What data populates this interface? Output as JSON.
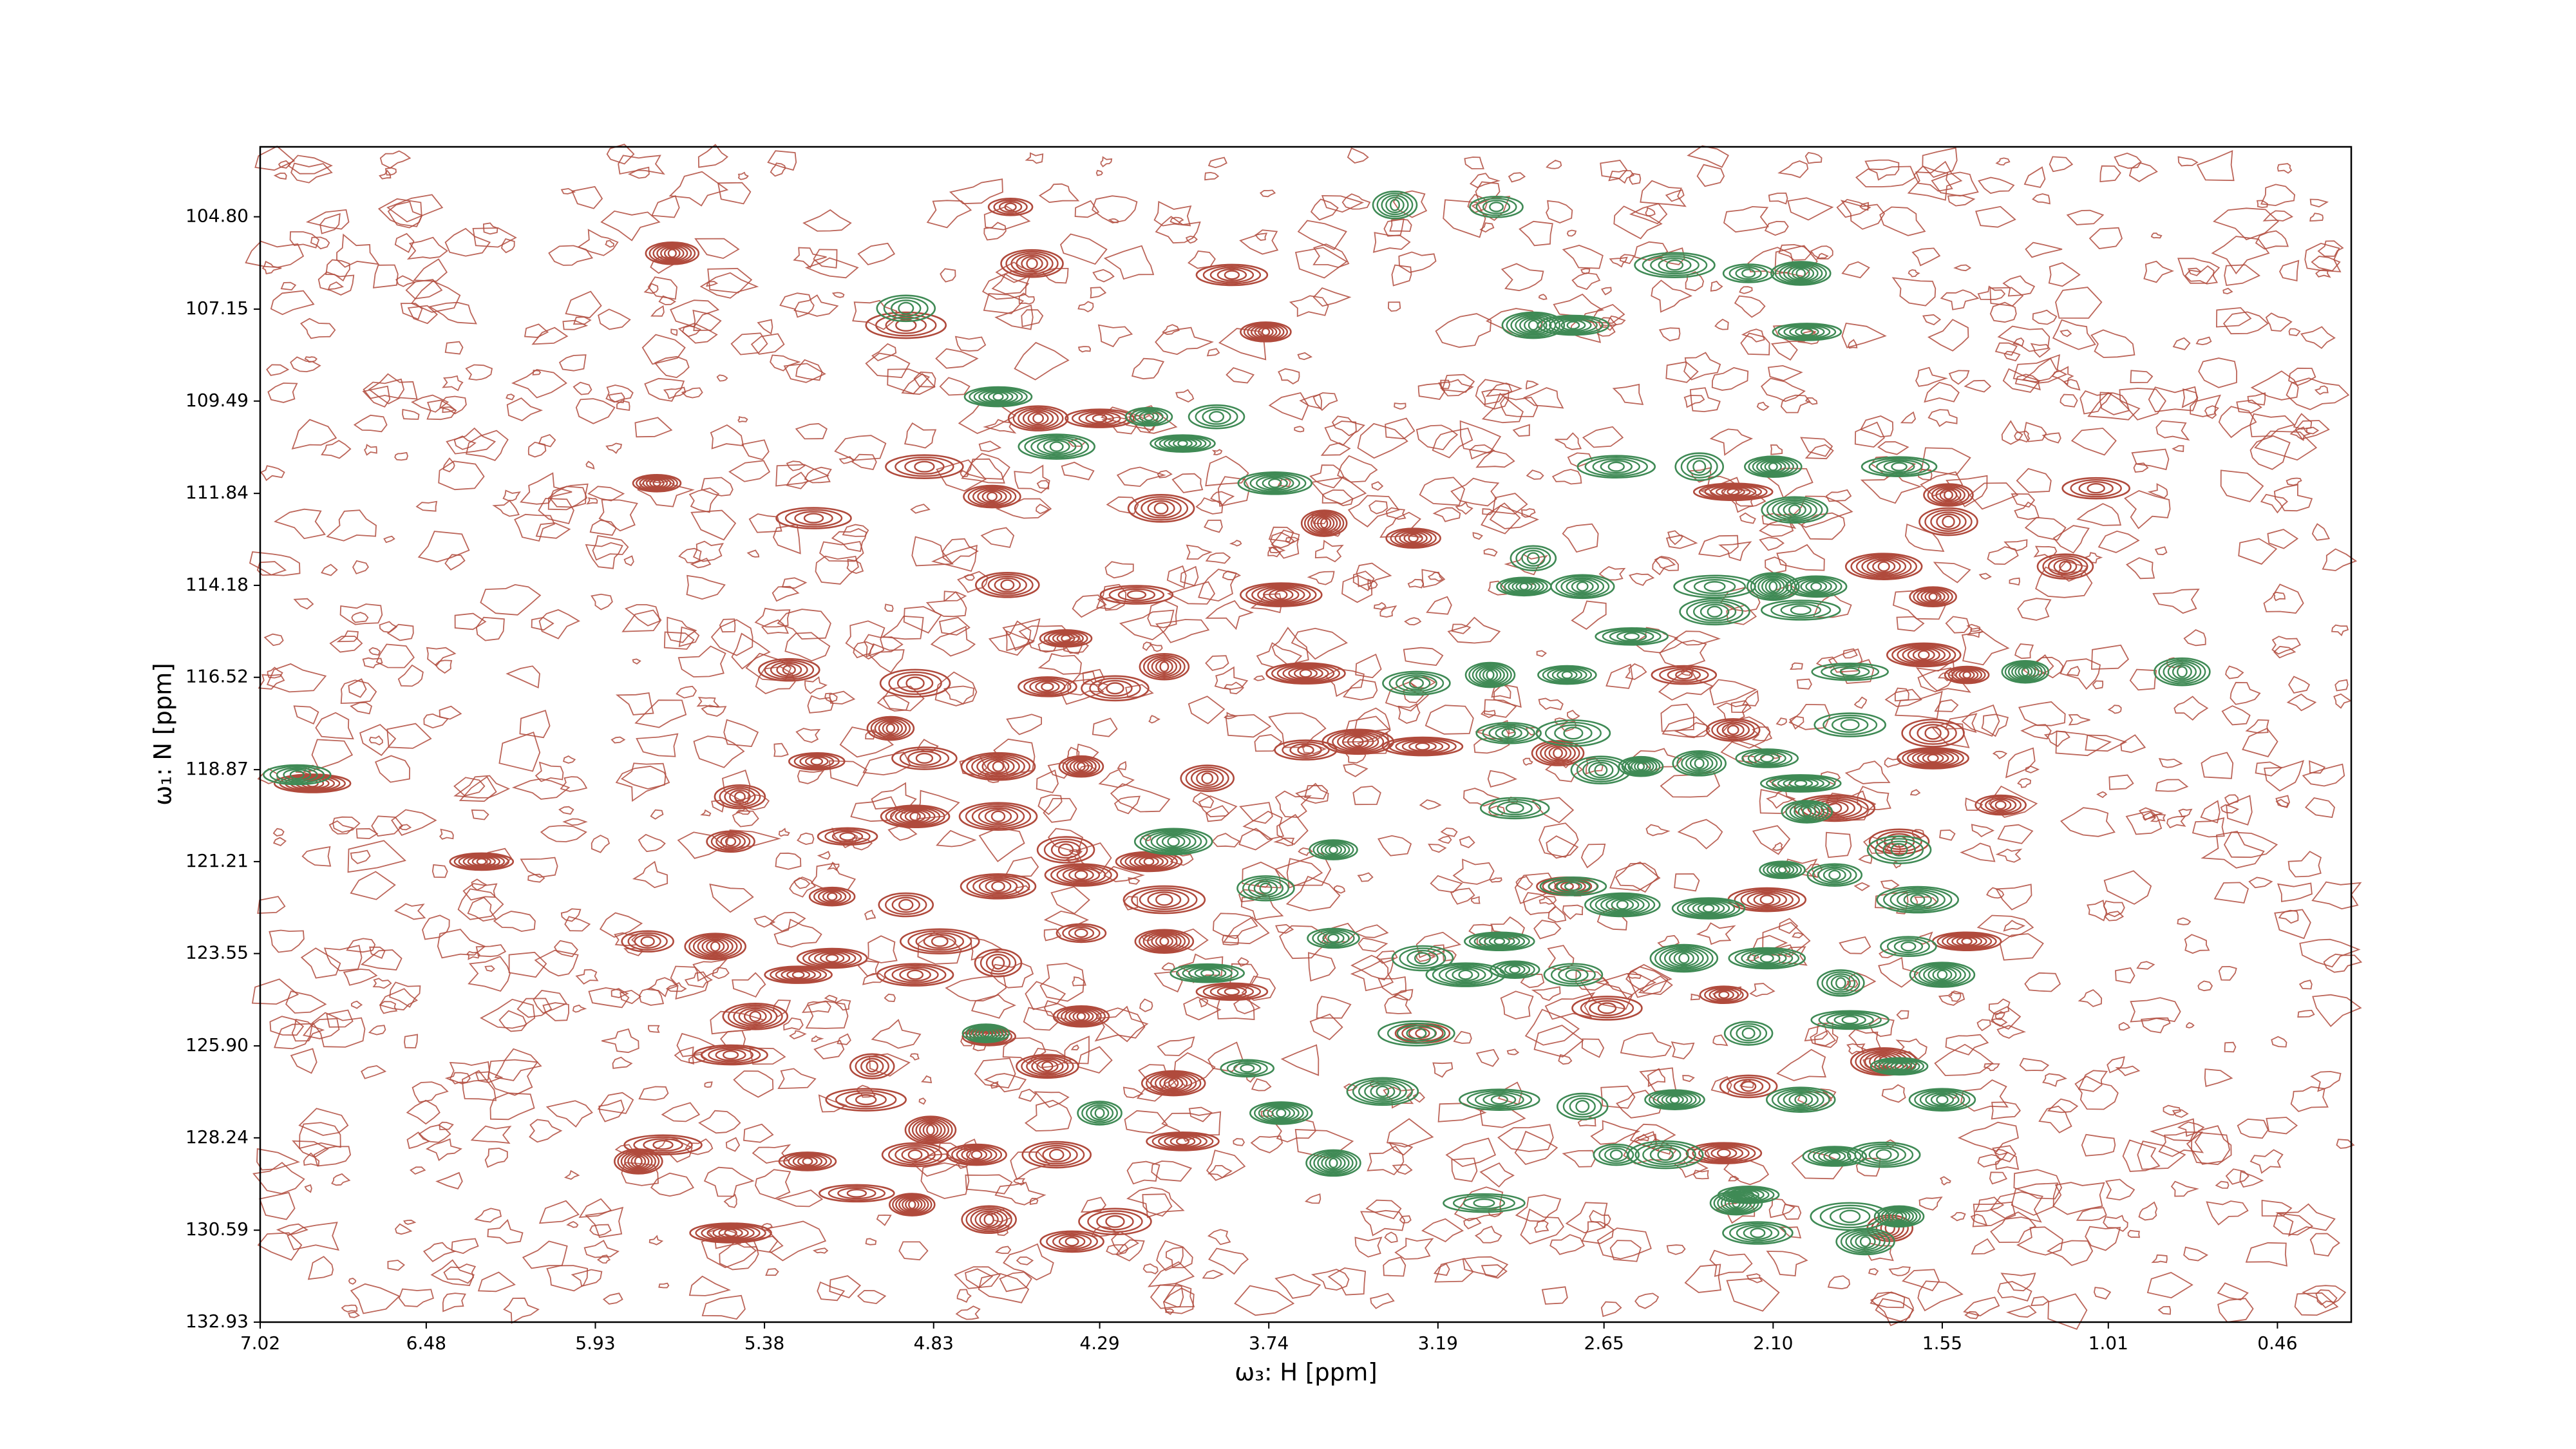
{
  "chart_data": {
    "type": "contour",
    "xlabel": "ω₃: H [ppm]",
    "ylabel": "ω₁: N [ppm]",
    "xlim": [
      7.02,
      0.22
    ],
    "ylim": [
      132.93,
      103.02
    ],
    "xticks": [
      7.02,
      6.48,
      5.93,
      5.38,
      4.83,
      4.29,
      3.74,
      3.19,
      2.65,
      {
        "value": 2.1,
        "label": "2.10"
      },
      1.55,
      1.01,
      0.46
    ],
    "yticks": [
      {
        "value": 104.8,
        "label": "104.80"
      },
      107.15,
      109.49,
      111.84,
      114.18,
      116.52,
      118.87,
      121.21,
      123.55,
      {
        "value": 125.9,
        "label": "125.90"
      },
      128.24,
      130.59,
      132.93
    ],
    "series": [
      {
        "color": "#b04a3c",
        "x": [
          4.58,
          5.68,
          4.51,
          3.86,
          4.92,
          3.75,
          4.49,
          4.29,
          4.86,
          5.73,
          4.64,
          4.09,
          5.22,
          3.56,
          3.27,
          4.59,
          4.17,
          3.7,
          4.4,
          5.3,
          4.89,
          3.62,
          4.08,
          4.46,
          4.24,
          6.85,
          4.97,
          5.21,
          4.86,
          4.62,
          4.35,
          3.94,
          3.62,
          3.45,
          3.24,
          5.46,
          5.11,
          4.89,
          4.62,
          5.49,
          4.4,
          4.13,
          4.62,
          5.16,
          4.92,
          6.3,
          4.35,
          4.08,
          5.76,
          5.54,
          5.16,
          4.81,
          4.35,
          4.08,
          5.27,
          4.89,
          4.62,
          4.35,
          5.41,
          5.49,
          5.03,
          4.65,
          4.46,
          3.86,
          5.05,
          4.84,
          4.69,
          4.43,
          5.71,
          5.79,
          5.24,
          4.89,
          5.08,
          4.9,
          4.65,
          4.38,
          4.24,
          5.49,
          2.8,
          2.77,
          2.64,
          2.23,
          1.53,
          1.53,
          1.05,
          1.74,
          1.58,
          1.15,
          2.39,
          1.61,
          1.47,
          2.23,
          1.58,
          1.58,
          1.9,
          1.36,
          1.69,
          1.47,
          2.12,
          2.26,
          2.18,
          1.74,
          2.26,
          1.72,
          3.24,
          4.05,
          4.02
        ],
        "values": [
          104.55,
          105.73,
          105.99,
          106.28,
          107.56,
          107.73,
          109.93,
          109.93,
          111.16,
          111.58,
          111.92,
          112.22,
          112.47,
          112.6,
          112.98,
          114.17,
          114.42,
          114.42,
          115.53,
          116.33,
          116.67,
          116.42,
          116.25,
          116.76,
          116.8,
          119.22,
          117.82,
          118.66,
          118.58,
          118.79,
          118.79,
          119.09,
          118.37,
          118.16,
          118.28,
          119.56,
          120.57,
          120.06,
          120.06,
          120.7,
          120.91,
          121.21,
          121.84,
          122.1,
          122.31,
          121.21,
          121.55,
          122.18,
          123.24,
          123.37,
          123.67,
          123.24,
          123.03,
          123.24,
          124.09,
          124.09,
          123.79,
          125.15,
          125.15,
          126.13,
          126.42,
          125.66,
          126.42,
          124.52,
          127.27,
          128.04,
          128.67,
          128.67,
          128.42,
          128.84,
          128.84,
          128.67,
          129.65,
          129.94,
          130.32,
          130.88,
          130.37,
          130.66,
          118.45,
          121.84,
          124.94,
          111.8,
          111.88,
          112.56,
          111.71,
          113.7,
          114.47,
          113.7,
          116.46,
          115.95,
          116.46,
          117.86,
          117.94,
          118.58,
          119.85,
          119.77,
          120.7,
          123.24,
          122.18,
          124.6,
          126.93,
          126.3,
          128.63,
          130.54,
          125.58,
          126.85,
          128.33
        ]
      },
      {
        "color": "#3f8a55",
        "x": [
          4.92,
          4.62,
          4.43,
          4.13,
          3.91,
          4.02,
          3.72,
          3.33,
          3.0,
          2.88,
          2.75,
          2.42,
          2.18,
          2.01,
          1.99,
          2.61,
          2.34,
          2.1,
          2.03,
          1.69,
          2.88,
          2.91,
          2.72,
          2.56,
          2.29,
          2.1,
          1.96,
          2.29,
          2.01,
          3.02,
          2.77,
          3.26,
          1.85,
          1.28,
          0.77,
          2.96,
          2.75,
          2.53,
          2.34,
          2.12,
          1.85,
          2.01,
          1.99,
          2.66,
          2.94,
          4.05,
          3.53,
          3.75,
          2.75,
          2.59,
          2.07,
          1.9,
          1.69,
          2.31,
          1.63,
          3.53,
          3.24,
          2.99,
          3.1,
          2.94,
          2.75,
          2.39,
          2.12,
          1.88,
          1.66,
          1.55,
          3.94,
          4.29,
          3.81,
          3.7,
          3.37,
          2.99,
          2.72,
          2.42,
          2.01,
          1.85,
          2.18,
          1.69,
          1.55,
          2.45,
          2.61,
          3.53,
          1.9,
          1.74,
          3.04,
          2.22,
          2.18,
          2.15,
          1.85,
          1.69,
          1.8,
          6.9,
          3.26,
          4.66
        ],
        "values": [
          107.13,
          109.38,
          110.65,
          109.89,
          109.89,
          110.57,
          111.58,
          104.5,
          104.55,
          107.56,
          107.56,
          106.03,
          106.24,
          106.24,
          107.73,
          111.16,
          111.16,
          111.16,
          112.26,
          111.16,
          113.49,
          114.21,
          114.21,
          115.48,
          114.21,
          114.21,
          114.21,
          114.85,
          114.81,
          116.46,
          116.46,
          116.67,
          116.38,
          116.38,
          116.38,
          117.94,
          117.94,
          118.79,
          118.71,
          118.58,
          117.73,
          119.22,
          119.94,
          118.88,
          119.85,
          120.7,
          120.91,
          121.89,
          121.84,
          122.31,
          121.42,
          121.55,
          120.91,
          122.4,
          122.18,
          123.16,
          123.67,
          123.24,
          124.09,
          123.96,
          124.09,
          123.67,
          123.67,
          124.3,
          123.37,
          124.09,
          124.05,
          127.61,
          126.47,
          127.61,
          127.06,
          127.27,
          127.44,
          127.27,
          127.27,
          125.24,
          125.58,
          126.42,
          127.27,
          128.67,
          128.67,
          128.88,
          128.71,
          128.67,
          129.9,
          129.9,
          129.69,
          130.66,
          130.24,
          130.24,
          130.88,
          119.0,
          125.58,
          125.58
        ]
      }
    ]
  }
}
